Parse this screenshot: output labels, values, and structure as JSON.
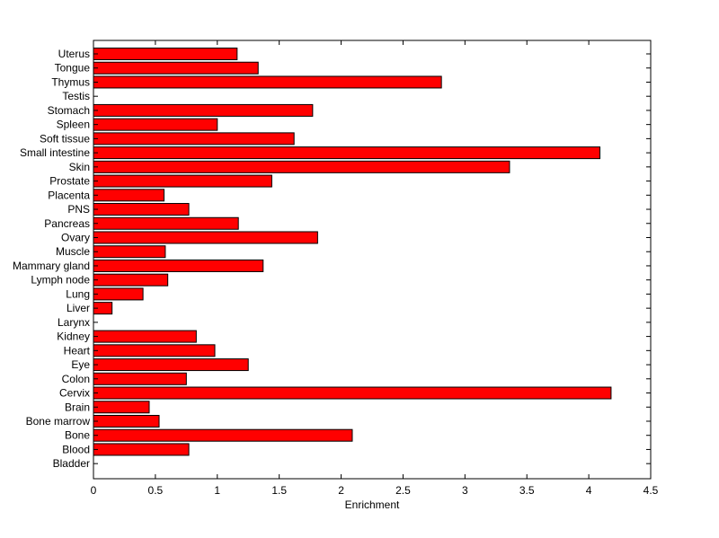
{
  "chart_data": {
    "type": "bar",
    "orientation": "horizontal",
    "title": "",
    "xlabel": "Enrichment",
    "ylabel": "",
    "xlim": [
      0,
      4.5
    ],
    "xticks": [
      0,
      0.5,
      1,
      1.5,
      2,
      2.5,
      3,
      3.5,
      4,
      4.5
    ],
    "xtick_labels": [
      "0",
      "0.5",
      "1",
      "1.5",
      "2",
      "2.5",
      "3",
      "3.5",
      "4",
      "4.5"
    ],
    "grid": false,
    "legend": "none",
    "bar_color": "#ff0000",
    "categories": [
      "Uterus",
      "Tongue",
      "Thymus",
      "Testis",
      "Stomach",
      "Spleen",
      "Soft tissue",
      "Small intestine",
      "Skin",
      "Prostate",
      "Placenta",
      "PNS",
      "Pancreas",
      "Ovary",
      "Muscle",
      "Mammary gland",
      "Lymph node",
      "Lung",
      "Liver",
      "Larynx",
      "Kidney",
      "Heart",
      "Eye",
      "Colon",
      "Cervix",
      "Brain",
      "Bone marrow",
      "Bone",
      "Blood",
      "Bladder"
    ],
    "values": [
      1.16,
      1.33,
      2.81,
      0,
      1.77,
      1.0,
      1.62,
      4.09,
      3.36,
      1.44,
      0.57,
      0.77,
      1.17,
      1.81,
      0.58,
      1.37,
      0.6,
      0.4,
      0.15,
      0,
      0.83,
      0.98,
      1.25,
      0.75,
      4.18,
      0.45,
      0.53,
      2.09,
      0.77,
      0
    ]
  }
}
